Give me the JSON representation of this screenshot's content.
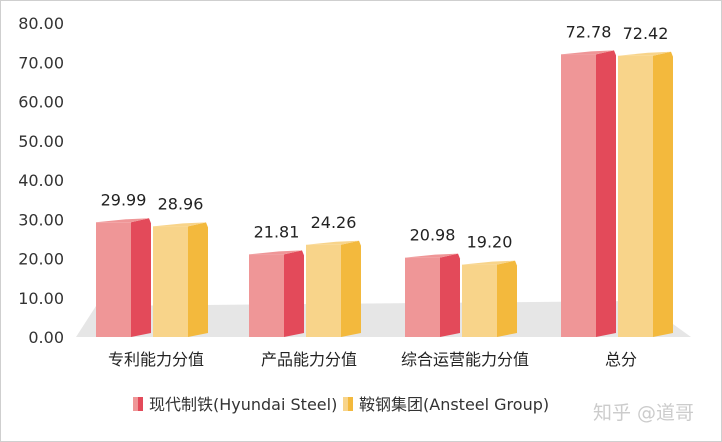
{
  "chart_data": {
    "type": "bar",
    "title": "",
    "categories": [
      "专利能力分值",
      "产品能力分值",
      "综合运营能力分值",
      "总分"
    ],
    "series": [
      {
        "name": "现代制铁(Hyundai Steel)",
        "values": [
          29.99,
          21.81,
          20.98,
          72.78
        ],
        "color": "#e34a5a",
        "front": "#ef9697"
      },
      {
        "name": "鞍钢集团(Ansteel Group)",
        "values": [
          28.96,
          24.26,
          19.2,
          72.42
        ],
        "color": "#f3b93d",
        "front": "#f8d48a"
      }
    ],
    "yticks": [
      "0.00",
      "10.00",
      "20.00",
      "30.00",
      "40.00",
      "50.00",
      "60.00",
      "70.00",
      "80.00"
    ],
    "ylim": [
      0,
      80
    ],
    "legend": "bottom",
    "grid": false
  },
  "watermark": "知乎 @道哥"
}
